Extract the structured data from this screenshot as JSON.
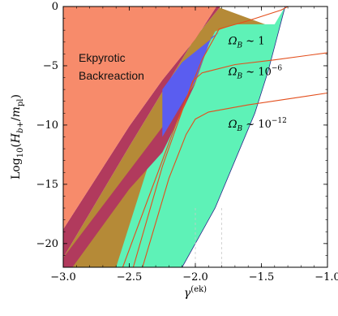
{
  "chart_data": {
    "type": "area",
    "xlabel": "γ^(ek)",
    "ylabel": "Log10(H_b+/m_pl)",
    "xlim": [
      -3.0,
      -1.0
    ],
    "ylim": [
      -22,
      0
    ],
    "xticks": [
      "−3.0",
      "−2.5",
      "−2.0",
      "−1.5",
      "−1.0"
    ],
    "xtick_values": [
      -3.0,
      -2.5,
      -2.0,
      -1.5,
      -1.0
    ],
    "yticks": [
      "0",
      "−5",
      "−10",
      "−15",
      "−20"
    ],
    "ytick_values": [
      0,
      -5,
      -10,
      -15,
      -20
    ],
    "region_label": [
      "Ekpyrotic",
      "Backreaction"
    ],
    "annotations": [
      {
        "text": "Ω_B ~ 1",
        "x": -1.75,
        "y": -3.2
      },
      {
        "text": "Ω_B ~ 10^−6",
        "x": -1.75,
        "y": -5.8
      },
      {
        "text": "Ω_B ~ 10^−12",
        "x": -1.75,
        "y": -10.2
      }
    ],
    "colors": {
      "backreaction": "#f78b6b",
      "crimson_band": "#b13a5d",
      "olive": "#b58a37",
      "blue": "#5a5df0",
      "green": "#5ef2b7",
      "contour": "#e34e1c",
      "outline": "#2a2a8a"
    },
    "regions": {
      "backreaction_boundary": [
        [
          -3.0,
          -18.8
        ],
        [
          -2.5,
          -10.1
        ],
        [
          -2.25,
          -6.2
        ],
        [
          -2.0,
          -2.75
        ],
        [
          -1.84,
          0
        ]
      ],
      "crimson_right_edge": [
        [
          -3.0,
          -21.2
        ],
        [
          -2.5,
          -11.8
        ],
        [
          -2.25,
          -7.2
        ],
        [
          -2.0,
          -2.6
        ],
        [
          -1.81,
          0
        ]
      ],
      "olive_left_edge": [
        [
          -2.93,
          -22
        ],
        [
          -2.5,
          -15.4
        ],
        [
          -2.25,
          -12.3
        ],
        [
          -2.2,
          -11.2
        ]
      ],
      "green_left_edge": [
        [
          -2.6,
          -22
        ],
        [
          -2.35,
          -13.2
        ],
        [
          -2.0,
          -6.5
        ],
        [
          -1.9,
          -3.2
        ],
        [
          -1.85,
          -2.1
        ]
      ],
      "green_right_edge": [
        [
          -2.1,
          -22
        ],
        [
          -1.85,
          -17.0
        ],
        [
          -1.55,
          -9.0
        ],
        [
          -1.45,
          -5.5
        ],
        [
          -1.32,
          0
        ]
      ],
      "olive_top_right_edge": [
        [
          -1.84,
          0
        ],
        [
          -1.4,
          -1.8
        ],
        [
          -1.32,
          0
        ]
      ],
      "blue_patch": [
        [
          -2.25,
          -11.0
        ],
        [
          -2.0,
          -6.3
        ],
        [
          -1.88,
          -2.6
        ],
        [
          -1.82,
          -2.2
        ],
        [
          -2.1,
          -4.7
        ],
        [
          -2.25,
          -7.0
        ]
      ]
    },
    "contours": [
      {
        "name": "Ω_B ~ 1",
        "points": [
          [
            -2.55,
            -22
          ],
          [
            -2.35,
            -16.0
          ],
          [
            -2.15,
            -10.0
          ],
          [
            -1.95,
            -4.5
          ],
          [
            -1.82,
            -1.9
          ],
          [
            -1.6,
            -1.2
          ],
          [
            -1.35,
            -0.3
          ],
          [
            -1.3,
            0
          ]
        ]
      },
      {
        "name": "Ω_B ~ 10^−6",
        "points": [
          [
            -2.47,
            -22
          ],
          [
            -2.25,
            -13.5
          ],
          [
            -2.1,
            -8.8
          ],
          [
            -2.02,
            -6.3
          ],
          [
            -1.95,
            -5.6
          ],
          [
            -1.7,
            -4.9
          ],
          [
            -1.4,
            -4.5
          ],
          [
            -1.0,
            -3.9
          ]
        ]
      },
      {
        "name": "Ω_B ~ 10^−12",
        "points": [
          [
            -2.4,
            -22
          ],
          [
            -2.2,
            -14.5
          ],
          [
            -2.07,
            -10.8
          ],
          [
            -2.0,
            -9.5
          ],
          [
            -1.9,
            -8.9
          ],
          [
            -1.6,
            -8.3
          ],
          [
            -1.3,
            -7.8
          ],
          [
            -1.0,
            -7.3
          ]
        ]
      }
    ],
    "dashed_x": [
      -2.0,
      -1.8
    ],
    "grid": false
  }
}
